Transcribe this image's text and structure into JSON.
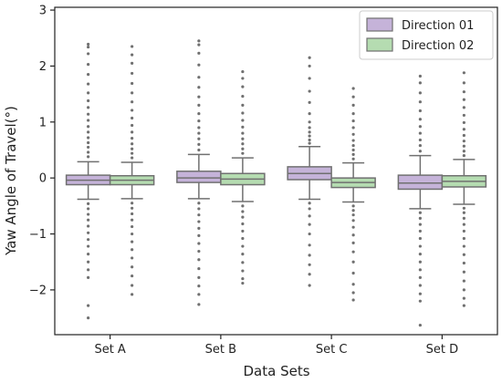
{
  "chart_data": {
    "type": "box",
    "xlabel": "Data Sets",
    "ylabel": "Yaw Angle of Travel(°)",
    "ylim": [
      -2.8,
      3.05
    ],
    "yticks": [
      -2,
      -1,
      0,
      1,
      2,
      3
    ],
    "ytick_labels": [
      "−2",
      "−1",
      "0",
      "1",
      "2",
      "3"
    ],
    "categories": [
      "Set A",
      "Set B",
      "Set C",
      "Set D"
    ],
    "grid": false,
    "legend": "top-right",
    "colors": {
      "direction_01": "#c5b3d9",
      "direction_02": "#b5dcb1",
      "edge": "#707070",
      "flier": "#707070"
    },
    "series": [
      {
        "name": "Direction 01",
        "boxes": [
          {
            "q1": -0.12,
            "median": -0.04,
            "q3": 0.05,
            "whislo": -0.38,
            "whishi": 0.29,
            "outliers_high": [
              0.38,
              0.46,
              0.55,
              0.63,
              0.72,
              0.82,
              0.92,
              1.03,
              1.14,
              1.26,
              1.38,
              1.52,
              1.68,
              1.85,
              2.03,
              2.22,
              2.34,
              2.39
            ],
            "outliers_low": [
              -0.46,
              -0.55,
              -0.65,
              -0.75,
              -0.86,
              -0.98,
              -1.1,
              -1.22,
              -1.36,
              -1.5,
              -1.64,
              -1.78,
              -2.28,
              -2.5
            ]
          },
          {
            "q1": -0.08,
            "median": 0.0,
            "q3": 0.12,
            "whislo": -0.37,
            "whishi": 0.42,
            "outliers_high": [
              0.5,
              0.6,
              0.7,
              0.8,
              0.9,
              1.02,
              1.15,
              1.3,
              1.45,
              1.62,
              1.8,
              2.02,
              2.23,
              2.38,
              2.45
            ],
            "outliers_low": [
              -0.45,
              -0.55,
              -0.66,
              -0.78,
              -0.9,
              -1.03,
              -1.17,
              -1.31,
              -1.46,
              -1.62,
              -1.78,
              -1.93,
              -2.08,
              -2.26
            ]
          },
          {
            "q1": -0.03,
            "median": 0.08,
            "q3": 0.2,
            "whislo": -0.38,
            "whishi": 0.56,
            "outliers_high": [
              0.62,
              0.68,
              0.75,
              0.82,
              0.9,
              1.0,
              1.15,
              1.35,
              1.55,
              1.78,
              2.0,
              2.15
            ],
            "outliers_low": [
              -0.45,
              -0.55,
              -0.68,
              -0.83,
              -1.0,
              -1.2,
              -1.38,
              -1.55,
              -1.72,
              -1.92
            ]
          },
          {
            "q1": -0.2,
            "median": -0.09,
            "q3": 0.05,
            "whislo": -0.55,
            "whishi": 0.4,
            "outliers_high": [
              0.48,
              0.58,
              0.68,
              0.8,
              0.92,
              1.05,
              1.2,
              1.36,
              1.52,
              1.7,
              1.82
            ],
            "outliers_low": [
              -0.62,
              -0.72,
              -0.83,
              -0.95,
              -1.08,
              -1.22,
              -1.36,
              -1.5,
              -1.64,
              -1.78,
              -1.92,
              -2.07,
              -2.2,
              -2.63
            ]
          }
        ]
      },
      {
        "name": "Direction 02",
        "boxes": [
          {
            "q1": -0.12,
            "median": -0.04,
            "q3": 0.04,
            "whislo": -0.37,
            "whishi": 0.28,
            "outliers_high": [
              0.36,
              0.44,
              0.52,
              0.61,
              0.71,
              0.82,
              0.94,
              1.07,
              1.21,
              1.36,
              1.52,
              1.69,
              1.87,
              2.05,
              2.2,
              2.35
            ],
            "outliers_low": [
              -0.45,
              -0.54,
              -0.64,
              -0.75,
              -0.87,
              -1.0,
              -1.14,
              -1.28,
              -1.43,
              -1.59,
              -1.75,
              -1.92,
              -2.08
            ]
          },
          {
            "q1": -0.12,
            "median": -0.02,
            "q3": 0.08,
            "whislo": -0.42,
            "whishi": 0.36,
            "outliers_high": [
              0.44,
              0.52,
              0.61,
              0.7,
              0.8,
              0.91,
              1.03,
              1.16,
              1.3,
              1.46,
              1.63,
              1.78,
              1.9
            ],
            "outliers_low": [
              -0.5,
              -0.6,
              -0.7,
              -0.82,
              -0.95,
              -1.08,
              -1.22,
              -1.36,
              -1.51,
              -1.66,
              -1.8,
              -1.88
            ]
          },
          {
            "q1": -0.17,
            "median": -0.08,
            "q3": 0.0,
            "whislo": -0.43,
            "whishi": 0.27,
            "outliers_high": [
              0.34,
              0.42,
              0.5,
              0.58,
              0.67,
              0.78,
              0.9,
              1.02,
              1.15,
              1.3,
              1.45,
              1.6
            ],
            "outliers_low": [
              -0.5,
              -0.58,
              -0.66,
              -0.76,
              -0.88,
              -1.02,
              -1.16,
              -1.32,
              -1.5,
              -1.7,
              -1.9,
              -2.05,
              -2.18
            ]
          },
          {
            "q1": -0.16,
            "median": -0.06,
            "q3": 0.04,
            "whislo": -0.47,
            "whishi": 0.33,
            "outliers_high": [
              0.4,
              0.48,
              0.57,
              0.66,
              0.76,
              0.87,
              0.99,
              1.12,
              1.26,
              1.4,
              1.54,
              1.7,
              1.88
            ],
            "outliers_low": [
              -0.54,
              -0.62,
              -0.72,
              -0.83,
              -0.95,
              -1.08,
              -1.22,
              -1.37,
              -1.52,
              -1.68,
              -1.84,
              -2.0,
              -2.15,
              -2.28
            ]
          }
        ]
      }
    ]
  }
}
